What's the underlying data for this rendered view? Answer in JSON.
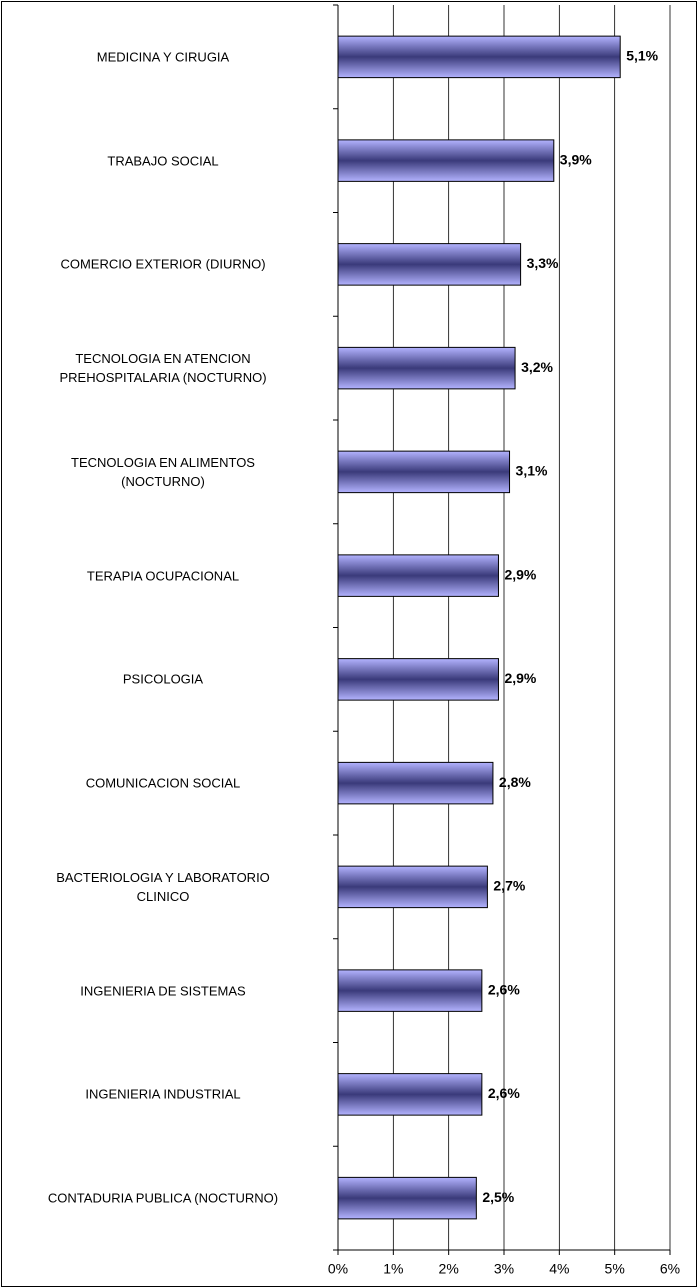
{
  "chart_data": {
    "type": "barh",
    "categories": [
      "MEDICINA Y CIRUGIA",
      "TRABAJO SOCIAL",
      "COMERCIO EXTERIOR (DIURNO)",
      "TECNOLOGIA EN ATENCION\nPREHOSPITALARIA (NOCTURNO)",
      "TECNOLOGIA EN ALIMENTOS\n(NOCTURNO)",
      "TERAPIA OCUPACIONAL",
      "PSICOLOGIA",
      "COMUNICACION SOCIAL",
      "BACTERIOLOGIA Y LABORATORIO\nCLINICO",
      "INGENIERIA DE SISTEMAS",
      "INGENIERIA INDUSTRIAL",
      "CONTADURIA PUBLICA (NOCTURNO)"
    ],
    "values": [
      5.1,
      3.9,
      3.3,
      3.2,
      3.1,
      2.9,
      2.9,
      2.8,
      2.7,
      2.6,
      2.6,
      2.5
    ],
    "value_labels": [
      "5,1%",
      "3,9%",
      "3,3%",
      "3,2%",
      "3,1%",
      "2,9%",
      "2,9%",
      "2,8%",
      "2,7%",
      "2,6%",
      "2,6%",
      "2,5%"
    ],
    "color": "#6666cc",
    "xlim": [
      0,
      6
    ],
    "xticks": [
      {
        "value": 0,
        "label": "0%"
      },
      {
        "value": 1,
        "label": "1%"
      },
      {
        "value": 2,
        "label": "2%"
      },
      {
        "value": 3,
        "label": "3%"
      },
      {
        "value": 4,
        "label": "4%"
      },
      {
        "value": 5,
        "label": "5%"
      },
      {
        "value": 6,
        "label": "6%"
      }
    ],
    "grid": true
  }
}
